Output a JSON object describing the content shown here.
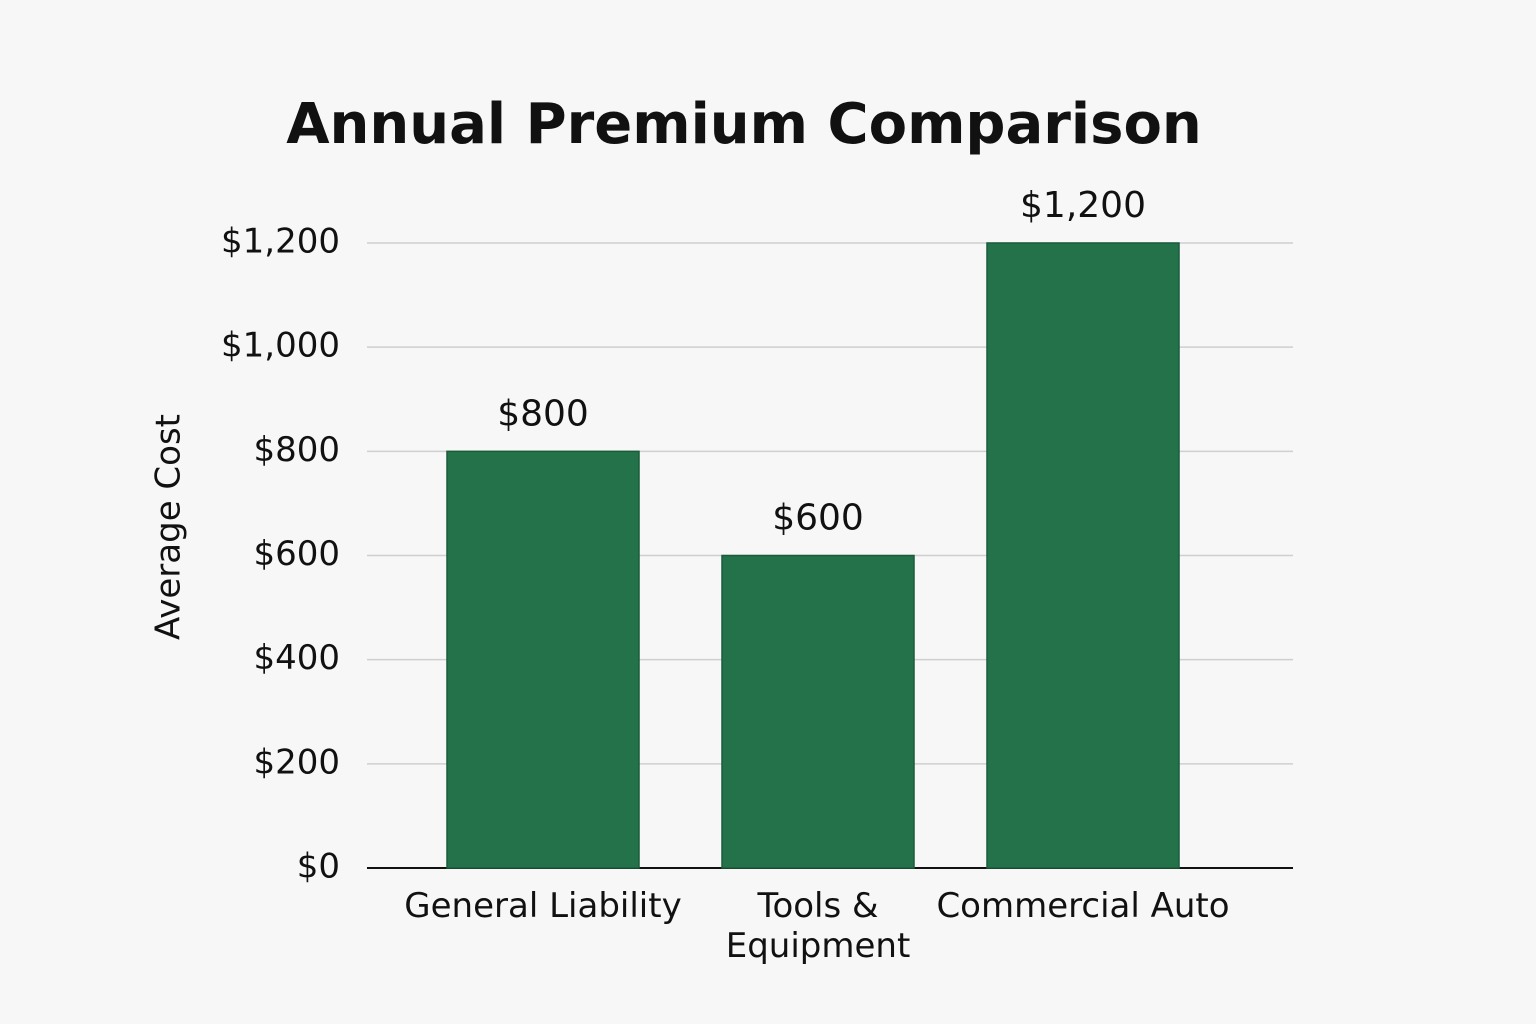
{
  "chart_data": {
    "type": "bar",
    "title": "Annual Premium Comparison",
    "ylabel": "Average Cost",
    "categories": [
      "General Liability",
      "Tools & Equipment",
      "Commercial Auto"
    ],
    "values": [
      800,
      600,
      1200
    ],
    "value_labels": [
      "$800",
      "$600",
      "$1,200"
    ],
    "color": "#23724a",
    "ylim": [
      0,
      1200
    ],
    "yticks": [
      {
        "value": 0,
        "label": "$0"
      },
      {
        "value": 200,
        "label": "$200"
      },
      {
        "value": 400,
        "label": "$400"
      },
      {
        "value": 600,
        "label": "$600"
      },
      {
        "value": 800,
        "label": "$800"
      },
      {
        "value": 1000,
        "label": "$1,000"
      },
      {
        "value": 1200,
        "label": "$1,200"
      }
    ],
    "grid": true
  }
}
